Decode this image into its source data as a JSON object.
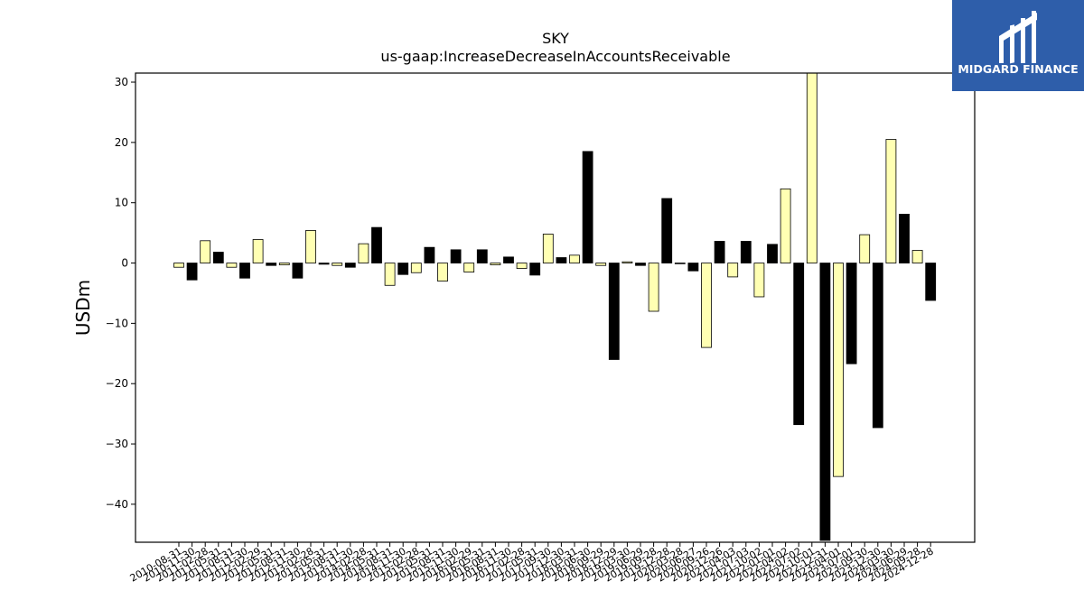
{
  "chart_data": {
    "type": "bar",
    "title": "SKY",
    "subtitle": "us-gaap:IncreaseDecreaseInAccountsReceivable",
    "xlabel": "",
    "ylabel": "USDm",
    "ylim": [
      -46.3,
      31.5
    ],
    "yticks": [
      -40,
      -30,
      -20,
      -10,
      0,
      10,
      20,
      30
    ],
    "grid": false,
    "categories": [
      "2010-08-31",
      "2010-11-30",
      "2011-02-28",
      "2011-05-31",
      "2011-08-31",
      "2011-11-30",
      "2012-02-29",
      "2012-05-31",
      "2012-08-31",
      "2012-11-30",
      "2013-02-28",
      "2013-05-31",
      "2013-08-31",
      "2013-11-30",
      "2014-02-28",
      "2014-05-31",
      "2014-08-31",
      "2014-11-30",
      "2015-02-28",
      "2015-05-31",
      "2015-08-31",
      "2015-11-30",
      "2016-02-29",
      "2016-05-31",
      "2016-08-31",
      "2016-11-30",
      "2017-02-28",
      "2017-05-31",
      "2017-09-30",
      "2017-12-30",
      "2018-03-31",
      "2018-06-30",
      "2018-09-29",
      "2018-12-29",
      "2019-03-30",
      "2019-06-29",
      "2019-09-28",
      "2019-12-28",
      "2020-03-28",
      "2020-06-27",
      "2020-09-26",
      "2020-12-26",
      "2021-04-03",
      "2021-07-03",
      "2021-10-02",
      "2022-01-01",
      "2022-04-02",
      "2022-07-02",
      "2022-10-01",
      "2022-12-31",
      "2023-04-01",
      "2023-07-01",
      "2023-09-30",
      "2023-12-30",
      "2024-03-30",
      "2024-06-29",
      "2024-09-28",
      "2024-12-28"
    ],
    "values": [
      -0.7,
      -2.8,
      3.7,
      1.8,
      -0.7,
      -2.5,
      3.9,
      -0.4,
      -0.3,
      -2.5,
      5.4,
      -0.2,
      -0.4,
      -0.7,
      3.2,
      5.9,
      -3.7,
      -1.9,
      -1.6,
      2.6,
      -3.0,
      2.2,
      -1.5,
      2.2,
      -0.3,
      1.0,
      -0.9,
      -2.0,
      4.8,
      0.9,
      1.3,
      18.5,
      -0.4,
      -16.0,
      0.2,
      -0.4,
      -8.0,
      10.7,
      -0.1,
      -1.3,
      -14.0,
      3.6,
      -2.3,
      3.6,
      -5.6,
      3.1,
      12.3,
      -26.8,
      31.5,
      -46.0,
      -35.4,
      -16.7,
      4.7,
      -27.3,
      20.5,
      8.1,
      2.1,
      -6.2
    ],
    "bar_colors": [
      "#ffffb3",
      "#000000"
    ],
    "bar_color_pattern": "alternates: odd-index bars black, even-index bars pale yellow",
    "edge_color": "#000000"
  },
  "logo": {
    "text": "MIDGARD FINANCE",
    "background": "#2e5eaa"
  }
}
